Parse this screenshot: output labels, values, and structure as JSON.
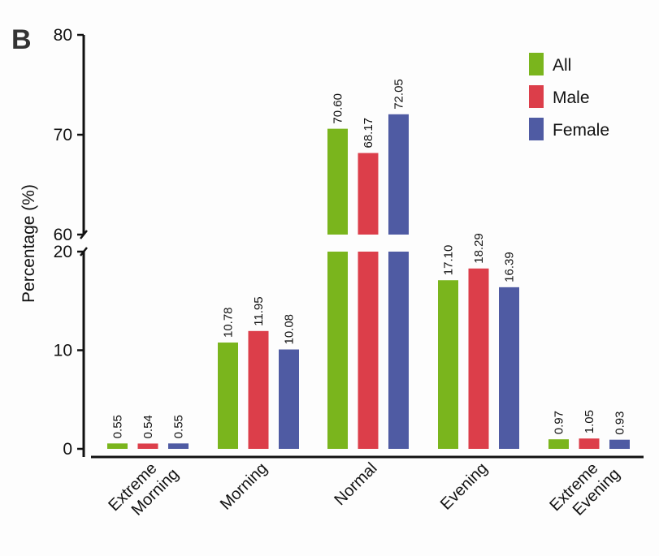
{
  "panel_label": "B",
  "chart_data": {
    "type": "bar",
    "title": "",
    "xlabel": "",
    "ylabel": "Percentage (%)",
    "axis_break": {
      "lower": [
        0,
        20
      ],
      "upper": [
        60,
        80
      ]
    },
    "lower_ticks": [
      "0",
      "10",
      "20"
    ],
    "upper_ticks": [
      "60",
      "70",
      "80"
    ],
    "categories": [
      [
        "Extreme",
        "Morning"
      ],
      [
        "Morning"
      ],
      [
        "Normal"
      ],
      [
        "Evening"
      ],
      [
        "Extreme",
        "Evening"
      ]
    ],
    "series": [
      {
        "name": "All",
        "color": "#7ab51d",
        "values": [
          0.55,
          10.78,
          70.6,
          17.1,
          0.97
        ],
        "labels": [
          "0.55",
          "10.78",
          "70.60",
          "17.10",
          "0.97"
        ]
      },
      {
        "name": "Male",
        "color": "#dc3e4a",
        "values": [
          0.54,
          11.95,
          68.17,
          18.29,
          1.05
        ],
        "labels": [
          "0.54",
          "11.95",
          "68.17",
          "18.29",
          "1.05"
        ]
      },
      {
        "name": "Female",
        "color": "#4f5ba3",
        "values": [
          0.55,
          10.08,
          72.05,
          16.39,
          0.93
        ],
        "labels": [
          "0.55",
          "10.08",
          "72.05",
          "16.39",
          "0.93"
        ]
      }
    ],
    "legend_position": "top-right",
    "grid": false
  }
}
